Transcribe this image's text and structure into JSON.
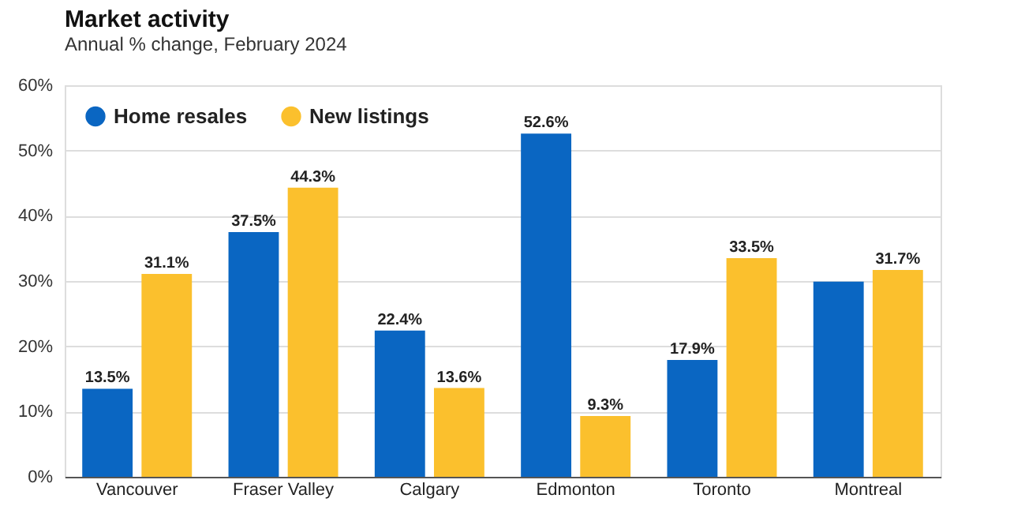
{
  "chart_data": {
    "type": "bar",
    "title": "Market activity",
    "subtitle": "Annual % change, February 2024",
    "categories": [
      "Vancouver",
      "Fraser Valley",
      "Calgary",
      "Edmonton",
      "Toronto",
      "Montreal"
    ],
    "series": [
      {
        "name": "Home resales",
        "color": "#0a66c2",
        "values": [
          13.5,
          37.5,
          22.4,
          52.6,
          17.9,
          29.9
        ],
        "value_labels": [
          "13.5%",
          "37.5%",
          "22.4%",
          "52.6%",
          "17.9%",
          null
        ]
      },
      {
        "name": "New listings",
        "color": "#fbc02d",
        "values": [
          31.1,
          44.3,
          13.6,
          9.3,
          33.5,
          31.7
        ],
        "value_labels": [
          "31.1%",
          "44.3%",
          "13.6%",
          "9.3%",
          "33.5%",
          "31.7%"
        ]
      }
    ],
    "ylim": [
      0,
      60
    ],
    "yticks": [
      {
        "value": 0,
        "label": "0%"
      },
      {
        "value": 10,
        "label": "10%"
      },
      {
        "value": 20,
        "label": "20%"
      },
      {
        "value": 30,
        "label": "30%"
      },
      {
        "value": 40,
        "label": "40%"
      },
      {
        "value": 50,
        "label": "50%"
      },
      {
        "value": 60,
        "label": "60%"
      }
    ],
    "grid": "y",
    "legend": "top left"
  }
}
